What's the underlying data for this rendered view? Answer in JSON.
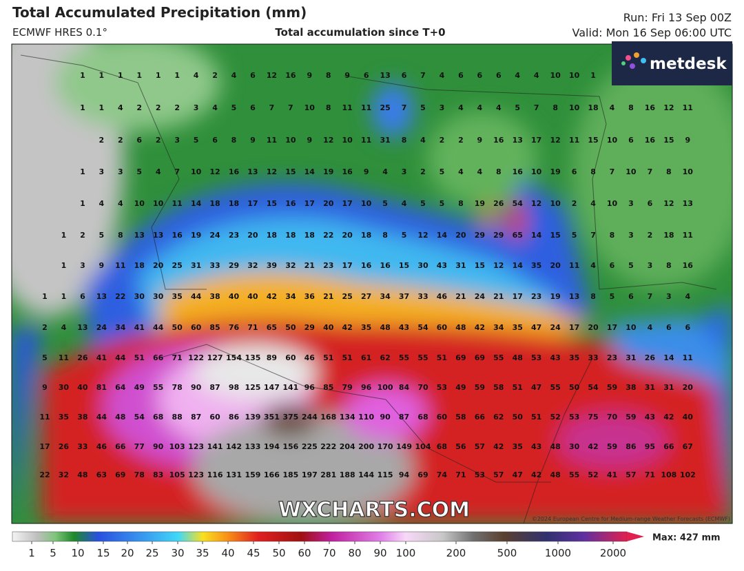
{
  "header": {
    "title": "Total Accumulated Precipitation (mm)",
    "model": "ECMWF HRES 0.1°",
    "subtitle": "Total accumulation since T+0",
    "run": "Run: Fri 13 Sep 00Z",
    "valid": "Valid: Mon 16 Sep 06:00 UTC"
  },
  "logo": "metdesk",
  "watermark": "WXCHARTS.COM",
  "copyright": "©2024 European Centre for Medium-range Weather Forecasts (ECMWF)",
  "map": {
    "rows": [
      [
        null,
        null,
        1,
        1,
        1,
        1,
        1,
        1,
        4,
        2,
        4,
        6,
        12,
        16,
        9,
        8,
        9,
        6,
        13,
        6,
        7,
        4,
        6,
        6,
        6,
        4,
        4,
        10,
        10,
        1,
        null,
        null,
        null,
        null,
        null
      ],
      [
        null,
        null,
        1,
        1,
        4,
        2,
        2,
        2,
        3,
        4,
        5,
        6,
        7,
        7,
        10,
        8,
        11,
        11,
        25,
        7,
        5,
        3,
        4,
        4,
        4,
        5,
        7,
        8,
        10,
        18,
        4,
        8,
        16,
        12,
        11
      ],
      [
        null,
        null,
        null,
        2,
        2,
        6,
        2,
        3,
        5,
        6,
        8,
        9,
        11,
        10,
        9,
        12,
        10,
        11,
        31,
        8,
        4,
        2,
        2,
        9,
        16,
        13,
        17,
        12,
        11,
        15,
        10,
        6,
        16,
        15,
        9
      ],
      [
        null,
        null,
        1,
        3,
        3,
        5,
        4,
        7,
        10,
        12,
        16,
        13,
        12,
        15,
        14,
        19,
        16,
        9,
        4,
        3,
        2,
        5,
        4,
        4,
        8,
        16,
        10,
        19,
        6,
        8,
        7,
        10,
        7,
        8,
        10
      ],
      [
        null,
        null,
        1,
        4,
        4,
        10,
        10,
        11,
        14,
        18,
        18,
        17,
        15,
        16,
        17,
        20,
        17,
        10,
        5,
        4,
        5,
        5,
        8,
        19,
        26,
        54,
        12,
        10,
        2,
        4,
        10,
        3,
        6,
        12,
        13
      ],
      [
        null,
        1,
        2,
        5,
        8,
        13,
        13,
        16,
        19,
        24,
        23,
        20,
        18,
        18,
        18,
        22,
        20,
        18,
        8,
        5,
        12,
        14,
        20,
        29,
        29,
        65,
        14,
        15,
        5,
        7,
        8,
        3,
        2,
        18,
        11
      ],
      [
        null,
        1,
        3,
        9,
        11,
        18,
        20,
        25,
        31,
        33,
        29,
        32,
        39,
        32,
        21,
        23,
        17,
        16,
        16,
        15,
        30,
        43,
        31,
        15,
        12,
        14,
        35,
        20,
        11,
        4,
        6,
        5,
        3,
        8,
        16
      ],
      [
        1,
        1,
        6,
        13,
        22,
        30,
        30,
        35,
        44,
        38,
        40,
        40,
        42,
        34,
        36,
        21,
        25,
        27,
        34,
        37,
        33,
        46,
        21,
        24,
        21,
        17,
        23,
        19,
        13,
        8,
        5,
        6,
        7,
        3,
        4
      ],
      [
        2,
        4,
        13,
        24,
        34,
        41,
        44,
        50,
        60,
        85,
        76,
        71,
        65,
        50,
        29,
        40,
        42,
        35,
        48,
        43,
        54,
        60,
        48,
        42,
        34,
        35,
        47,
        24,
        17,
        20,
        17,
        10,
        4,
        6,
        6
      ],
      [
        5,
        11,
        26,
        41,
        44,
        51,
        66,
        71,
        122,
        127,
        154,
        135,
        89,
        60,
        46,
        51,
        51,
        61,
        62,
        55,
        55,
        51,
        69,
        69,
        55,
        48,
        53,
        43,
        35,
        33,
        23,
        31,
        26,
        14,
        11
      ],
      [
        9,
        30,
        40,
        81,
        64,
        49,
        55,
        78,
        90,
        87,
        98,
        125,
        147,
        141,
        96,
        85,
        79,
        96,
        100,
        84,
        70,
        53,
        49,
        59,
        58,
        51,
        47,
        55,
        50,
        54,
        59,
        38,
        31,
        31,
        20
      ],
      [
        11,
        35,
        38,
        44,
        48,
        54,
        68,
        88,
        87,
        60,
        86,
        139,
        351,
        375,
        244,
        168,
        134,
        110,
        90,
        87,
        68,
        60,
        58,
        66,
        62,
        50,
        51,
        52,
        53,
        75,
        70,
        59,
        43,
        42,
        40
      ],
      [
        17,
        26,
        33,
        46,
        66,
        77,
        90,
        103,
        123,
        141,
        142,
        133,
        194,
        156,
        225,
        222,
        204,
        200,
        170,
        149,
        104,
        68,
        56,
        57,
        42,
        35,
        43,
        48,
        30,
        42,
        59,
        86,
        95,
        66,
        67
      ],
      [
        22,
        32,
        48,
        63,
        69,
        78,
        83,
        105,
        123,
        116,
        131,
        159,
        166,
        185,
        197,
        281,
        188,
        144,
        115,
        94,
        69,
        74,
        71,
        53,
        57,
        47,
        42,
        48,
        55,
        52,
        41,
        57,
        71,
        108,
        102
      ]
    ]
  },
  "legend": {
    "ticks": [
      1,
      5,
      10,
      15,
      20,
      25,
      30,
      35,
      40,
      45,
      50,
      60,
      70,
      80,
      90,
      100,
      200,
      500,
      1000,
      2000
    ],
    "max": "Max: 427 mm"
  }
}
